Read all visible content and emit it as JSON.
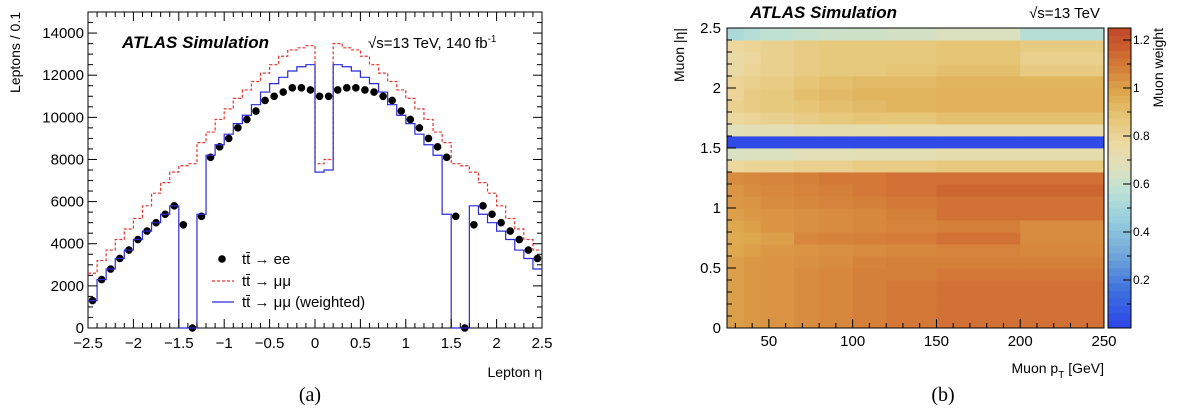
{
  "panels": {
    "a": {
      "label": "(a)",
      "atlas": "ATLAS Simulation",
      "energy_prefix": "√s=13 TeV, 140 fb",
      "energy_sup": "-1"
    },
    "b": {
      "label": "(b)",
      "atlas": "ATLAS Simulation",
      "energy": "√s=13 TeV"
    }
  },
  "chart_data": [
    {
      "type": "line",
      "xlabel": "Lepton η",
      "ylabel": "Leptons / 0.1",
      "xlim": [
        -2.5,
        2.5
      ],
      "ylim": [
        0,
        15000
      ],
      "x_ticks": [
        -2.5,
        -2,
        -1.5,
        -1,
        -0.5,
        0,
        0.5,
        1,
        1.5,
        2,
        2.5
      ],
      "x_tick_labels": [
        "−2.5",
        "−2",
        "−1.5",
        "−1",
        "−0.5",
        "0",
        "0.5",
        "1",
        "1.5",
        "2",
        "2.5"
      ],
      "y_ticks": [
        0,
        2000,
        4000,
        6000,
        8000,
        10000,
        12000,
        14000
      ],
      "y_tick_labels": [
        "0",
        "2000",
        "4000",
        "6000",
        "8000",
        "10000",
        "12000",
        "14000"
      ],
      "legend_position": "bottom-center",
      "bin_edges": [
        -2.5,
        -2.4,
        -2.3,
        -2.2,
        -2.1,
        -2.0,
        -1.9,
        -1.8,
        -1.7,
        -1.6,
        -1.5,
        -1.4,
        -1.3,
        -1.2,
        -1.1,
        -1.0,
        -0.9,
        -0.8,
        -0.7,
        -0.6,
        -0.5,
        -0.4,
        -0.3,
        -0.2,
        -0.1,
        0.0,
        0.1,
        0.2,
        0.3,
        0.4,
        0.5,
        0.6,
        0.7,
        0.8,
        0.9,
        1.0,
        1.1,
        1.2,
        1.3,
        1.4,
        1.5,
        1.6,
        1.7,
        1.8,
        1.9,
        2.0,
        2.1,
        2.2,
        2.3,
        2.4,
        2.5
      ],
      "series": [
        {
          "name": "tt̄ → ee",
          "style": "points",
          "color": "#000000",
          "values": [
            1300,
            2300,
            2800,
            3300,
            3700,
            4200,
            4600,
            5000,
            5400,
            5800,
            4900,
            0,
            5300,
            8100,
            8600,
            9000,
            9500,
            9900,
            10300,
            10800,
            11000,
            11200,
            11400,
            11400,
            11300,
            11000,
            11000,
            11300,
            11400,
            11400,
            11300,
            11200,
            11000,
            10800,
            10300,
            9900,
            9500,
            9000,
            8600,
            8100,
            5300,
            0,
            4900,
            5800,
            5400,
            5000,
            4600,
            4200,
            3700,
            3300
          ]
        },
        {
          "name": "tt̄ → μμ",
          "style": "dashed-step",
          "color": "#e8322a",
          "values": [
            2600,
            3200,
            3700,
            4200,
            4700,
            5200,
            5800,
            6400,
            6900,
            7400,
            7700,
            7800,
            8800,
            9300,
            9900,
            10400,
            10900,
            11300,
            11700,
            12100,
            12500,
            12900,
            13200,
            13300,
            13400,
            7800,
            8000,
            13500,
            13300,
            13200,
            12900,
            12500,
            12100,
            11700,
            11300,
            10900,
            10400,
            9900,
            9300,
            8800,
            7800,
            7700,
            7400,
            6900,
            6400,
            5800,
            5200,
            4700,
            4200,
            3700
          ]
        },
        {
          "name": "tt̄ → μμ (weighted)",
          "style": "solid-step",
          "color": "#2b2bd6",
          "values": [
            1300,
            2300,
            2800,
            3300,
            3700,
            4200,
            4600,
            5000,
            5400,
            5800,
            0,
            0,
            5400,
            8200,
            8700,
            9200,
            9700,
            10100,
            10600,
            11200,
            11600,
            11900,
            12200,
            12400,
            12500,
            7400,
            7500,
            12500,
            12400,
            12200,
            11900,
            11600,
            11200,
            10600,
            10100,
            9700,
            9200,
            8700,
            8200,
            5400,
            0,
            0,
            5800,
            5400,
            5000,
            4600,
            4200,
            3700,
            3300,
            2800
          ]
        }
      ]
    },
    {
      "type": "heatmap",
      "xlabel": "Muon p",
      "xlabel_sub": "T",
      "xlabel_suffix": " [GeV]",
      "ylabel": "Muon |η|",
      "zlabel": "Muon weight",
      "xlim": [
        25,
        250
      ],
      "ylim": [
        0,
        2.5
      ],
      "zlim": [
        0,
        1.25
      ],
      "x_ticks": [
        50,
        100,
        150,
        200,
        250
      ],
      "x_tick_labels": [
        "50",
        "100",
        "150",
        "200",
        "250"
      ],
      "y_ticks": [
        0,
        0.5,
        1,
        1.5,
        2,
        2.5
      ],
      "y_tick_labels": [
        "0",
        "0.5",
        "1",
        "1.5",
        "2",
        "2.5"
      ],
      "z_ticks": [
        0.2,
        0.4,
        0.6,
        0.8,
        1,
        1.2
      ],
      "z_tick_labels": [
        "0.2",
        "0.4",
        "0.6",
        "0.8",
        "1",
        "1.2"
      ],
      "x_edges": [
        25,
        35,
        45,
        65,
        80,
        100,
        120,
        150,
        200,
        250
      ],
      "y_edges": [
        0,
        0.1,
        0.2,
        0.3,
        0.4,
        0.5,
        0.6,
        0.7,
        0.8,
        0.9,
        1.0,
        1.1,
        1.2,
        1.3,
        1.4,
        1.5,
        1.6,
        1.7,
        1.8,
        1.9,
        2.0,
        2.1,
        2.2,
        2.3,
        2.4,
        2.5
      ],
      "values": [
        [
          1.0,
          1.02,
          1.03,
          1.05,
          1.06,
          1.08,
          1.1,
          1.12,
          1.12
        ],
        [
          1.0,
          1.02,
          1.03,
          1.05,
          1.06,
          1.08,
          1.1,
          1.12,
          1.12
        ],
        [
          1.0,
          1.02,
          1.03,
          1.05,
          1.06,
          1.08,
          1.1,
          1.12,
          1.12
        ],
        [
          1.0,
          1.02,
          1.03,
          1.05,
          1.06,
          1.08,
          1.1,
          1.12,
          1.12
        ],
        [
          1.0,
          1.02,
          1.03,
          1.05,
          1.06,
          1.08,
          1.08,
          1.1,
          1.1
        ],
        [
          1.0,
          1.02,
          1.03,
          1.04,
          1.05,
          1.07,
          1.08,
          1.08,
          1.08
        ],
        [
          0.98,
          1.0,
          1.02,
          1.03,
          1.04,
          1.05,
          1.06,
          1.07,
          1.06
        ],
        [
          0.97,
          0.98,
          1.0,
          1.06,
          1.07,
          1.08,
          1.09,
          1.12,
          1.05
        ],
        [
          0.98,
          1.0,
          1.03,
          1.04,
          1.05,
          1.06,
          1.07,
          1.08,
          1.05
        ],
        [
          1.0,
          1.02,
          1.03,
          1.04,
          1.05,
          1.06,
          1.08,
          1.12,
          1.12
        ],
        [
          1.02,
          1.03,
          1.05,
          1.06,
          1.07,
          1.08,
          1.1,
          1.12,
          1.12
        ],
        [
          1.03,
          1.05,
          1.06,
          1.07,
          1.08,
          1.1,
          1.12,
          1.15,
          1.15
        ],
        [
          1.05,
          1.06,
          1.07,
          1.08,
          1.1,
          1.1,
          1.12,
          1.12,
          1.12
        ],
        [
          0.78,
          0.8,
          0.8,
          0.82,
          0.82,
          0.84,
          0.84,
          0.86,
          0.86
        ],
        [
          0.65,
          0.66,
          0.66,
          0.68,
          0.68,
          0.7,
          0.7,
          0.72,
          0.72
        ],
        [
          0.02,
          0.02,
          0.02,
          0.02,
          0.02,
          0.02,
          0.02,
          0.02,
          0.02
        ],
        [
          0.68,
          0.7,
          0.7,
          0.72,
          0.72,
          0.72,
          0.74,
          0.74,
          0.74
        ],
        [
          0.78,
          0.8,
          0.82,
          0.84,
          0.86,
          0.88,
          0.88,
          0.9,
          0.9
        ],
        [
          0.82,
          0.84,
          0.86,
          0.88,
          0.9,
          0.92,
          0.94,
          0.95,
          0.95
        ],
        [
          0.8,
          0.84,
          0.86,
          0.9,
          0.92,
          0.94,
          0.94,
          0.95,
          0.95
        ],
        [
          0.8,
          0.82,
          0.84,
          0.88,
          0.9,
          0.92,
          0.92,
          0.94,
          0.94
        ],
        [
          0.76,
          0.8,
          0.82,
          0.84,
          0.86,
          0.86,
          0.88,
          0.9,
          0.85
        ],
        [
          0.76,
          0.78,
          0.82,
          0.84,
          0.86,
          0.86,
          0.86,
          0.88,
          0.82
        ],
        [
          0.78,
          0.8,
          0.82,
          0.84,
          0.86,
          0.86,
          0.86,
          0.88,
          0.85
        ],
        [
          0.52,
          0.55,
          0.58,
          0.6,
          0.62,
          0.62,
          0.64,
          0.66,
          0.55
        ]
      ]
    }
  ]
}
